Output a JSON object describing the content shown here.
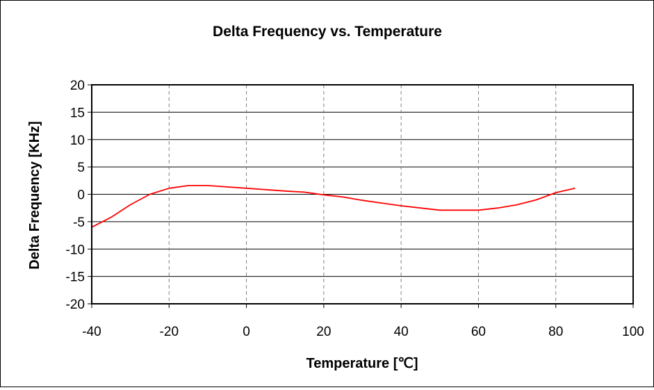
{
  "chart_data": {
    "type": "line",
    "title": "Delta Frequency vs. Temperature",
    "xlabel": "Temperature [℃]",
    "ylabel": "Delta Frequency [KHz]",
    "xlim": [
      -40,
      100
    ],
    "ylim": [
      -20,
      20
    ],
    "xticks": [
      "-40",
      "-20",
      "0",
      "20",
      "40",
      "60",
      "80",
      "100"
    ],
    "yticks": [
      "20",
      "15",
      "10",
      "5",
      "0",
      "-5",
      "-10",
      "-15",
      "-20"
    ],
    "grid": {
      "y": "solid",
      "x": "dashed"
    },
    "series": [
      {
        "color": "#ff0000",
        "x": [
          -40,
          -35,
          -30,
          -25,
          -20,
          -15,
          -10,
          0,
          10,
          15,
          20,
          25,
          30,
          35,
          40,
          45,
          50,
          55,
          60,
          65,
          70,
          75,
          80,
          85
        ],
        "y": [
          -6,
          -4.2,
          -1.9,
          0,
          1.1,
          1.6,
          1.6,
          1.1,
          0.6,
          0.4,
          -0.1,
          -0.5,
          -1.1,
          -1.6,
          -2.1,
          -2.5,
          -2.9,
          -2.9,
          -2.9,
          -2.5,
          -1.9,
          -1.0,
          0.3,
          1.1
        ]
      }
    ]
  }
}
